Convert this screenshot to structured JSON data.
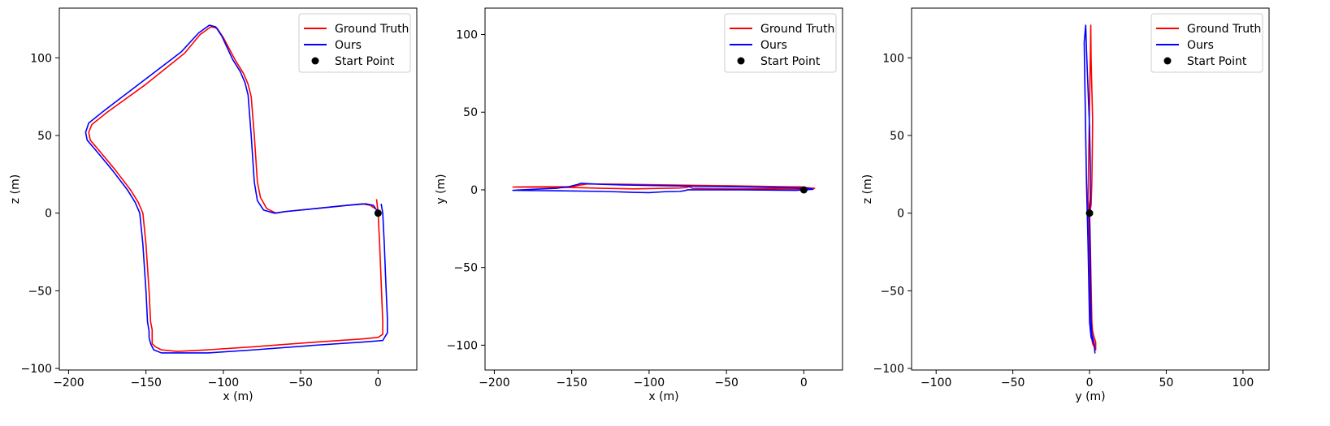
{
  "chart_data": [
    {
      "type": "line",
      "xlabel": "x (m)",
      "ylabel": "z (m)",
      "xlim": [
        -206,
        25
      ],
      "ylim": [
        -101,
        132
      ],
      "xticks": [
        -200,
        -150,
        -100,
        -50,
        0
      ],
      "yticks": [
        -100,
        -50,
        0,
        50,
        100
      ],
      "legend": {
        "position": "top-right",
        "entries": [
          "Ground Truth",
          "Ours",
          "Start Point"
        ]
      },
      "series": [
        {
          "name": "Ground Truth",
          "color": "#ff0000",
          "points": [
            [
              -1,
              9
            ],
            [
              0,
              0
            ],
            [
              1,
              -20
            ],
            [
              2,
              -45
            ],
            [
              3,
              -70
            ],
            [
              3,
              -78
            ],
            [
              0,
              -80
            ],
            [
              -10,
              -81
            ],
            [
              -40,
              -83
            ],
            [
              -80,
              -86
            ],
            [
              -110,
              -88
            ],
            [
              -130,
              -89
            ],
            [
              -140,
              -88
            ],
            [
              -144,
              -86
            ],
            [
              -146,
              -84
            ],
            [
              -146,
              -80
            ],
            [
              -146,
              -75
            ],
            [
              -147,
              -70
            ],
            [
              -148,
              -50
            ],
            [
              -150,
              -20
            ],
            [
              -152,
              0
            ],
            [
              -155,
              7
            ],
            [
              -160,
              15
            ],
            [
              -170,
              28
            ],
            [
              -180,
              40
            ],
            [
              -186,
              47
            ],
            [
              -187,
              52
            ],
            [
              -185,
              57
            ],
            [
              -175,
              65
            ],
            [
              -150,
              83
            ],
            [
              -125,
              103
            ],
            [
              -115,
              115
            ],
            [
              -108,
              120
            ],
            [
              -104,
              119
            ],
            [
              -100,
              113
            ],
            [
              -92,
              98
            ],
            [
              -87,
              90
            ],
            [
              -84,
              83
            ],
            [
              -82,
              75
            ],
            [
              -80,
              50
            ],
            [
              -78,
              20
            ],
            [
              -76,
              10
            ],
            [
              -72,
              3
            ],
            [
              -66,
              0
            ],
            [
              -60,
              1
            ],
            [
              -40,
              3
            ],
            [
              -20,
              5
            ],
            [
              -10,
              6
            ],
            [
              -5,
              5
            ],
            [
              -2,
              3
            ]
          ]
        },
        {
          "name": "Ours",
          "color": "#0000ff",
          "points": [
            [
              2,
              6
            ],
            [
              3,
              0
            ],
            [
              4,
              -20
            ],
            [
              5,
              -45
            ],
            [
              6,
              -68
            ],
            [
              6,
              -77
            ],
            [
              3,
              -82
            ],
            [
              -10,
              -83
            ],
            [
              -40,
              -85
            ],
            [
              -80,
              -88
            ],
            [
              -110,
              -90
            ],
            [
              -130,
              -90
            ],
            [
              -140,
              -90
            ],
            [
              -145,
              -88
            ],
            [
              -147,
              -84
            ],
            [
              -148,
              -80
            ],
            [
              -148,
              -76
            ],
            [
              -149,
              -70
            ],
            [
              -150,
              -50
            ],
            [
              -152,
              -20
            ],
            [
              -154,
              0
            ],
            [
              -157,
              7
            ],
            [
              -162,
              15
            ],
            [
              -172,
              28
            ],
            [
              -182,
              40
            ],
            [
              -188,
              47
            ],
            [
              -189,
              52
            ],
            [
              -187,
              58
            ],
            [
              -177,
              66
            ],
            [
              -152,
              85
            ],
            [
              -127,
              104
            ],
            [
              -116,
              116
            ],
            [
              -109,
              121
            ],
            [
              -105,
              120
            ],
            [
              -101,
              114
            ],
            [
              -94,
              99
            ],
            [
              -89,
              91
            ],
            [
              -86,
              84
            ],
            [
              -84,
              76
            ],
            [
              -82,
              50
            ],
            [
              -80,
              20
            ],
            [
              -78,
              8
            ],
            [
              -74,
              2
            ],
            [
              -67,
              0
            ],
            [
              -60,
              1
            ],
            [
              -40,
              3
            ],
            [
              -20,
              5
            ],
            [
              -8,
              6
            ],
            [
              -3,
              5
            ],
            [
              -1,
              2
            ]
          ]
        },
        {
          "name": "Start Point",
          "color": "#000000",
          "marker": "circle",
          "points": [
            [
              0,
              0
            ]
          ]
        }
      ]
    },
    {
      "type": "line",
      "xlabel": "x (m)",
      "ylabel": "y (m)",
      "xlim": [
        -206,
        25
      ],
      "ylim": [
        -116,
        117
      ],
      "xticks": [
        -200,
        -150,
        -100,
        -50,
        0
      ],
      "yticks": [
        -100,
        -50,
        0,
        50,
        100
      ],
      "legend": {
        "position": "top-right",
        "entries": [
          "Ground Truth",
          "Ours",
          "Start Point"
        ]
      },
      "series": [
        {
          "name": "Ground Truth",
          "color": "#ff0000",
          "points": [
            [
              -2,
              2
            ],
            [
              -10,
              2
            ],
            [
              -30,
              2.3
            ],
            [
              -50,
              2.6
            ],
            [
              -80,
              3
            ],
            [
              -110,
              3.5
            ],
            [
              -140,
              3.8
            ],
            [
              -145,
              3
            ],
            [
              -150,
              2
            ],
            [
              -170,
              2
            ],
            [
              -188,
              1.8
            ],
            [
              -170,
              1.7
            ],
            [
              -150,
              1.5
            ],
            [
              -130,
              1
            ],
            [
              -110,
              0.6
            ],
            [
              -90,
              1
            ],
            [
              -80,
              1.2
            ],
            [
              -76,
              1.5
            ],
            [
              -74,
              2
            ],
            [
              -72,
              1
            ],
            [
              -60,
              0.8
            ],
            [
              -40,
              0.6
            ],
            [
              -20,
              0.6
            ],
            [
              -5,
              0.5
            ],
            [
              0,
              0.3
            ],
            [
              4,
              0.5
            ],
            [
              7,
              1
            ],
            [
              0,
              1.5
            ],
            [
              -2,
              2
            ]
          ]
        },
        {
          "name": "Ours",
          "color": "#0000ff",
          "points": [
            [
              0,
              0
            ],
            [
              6,
              0.3
            ],
            [
              3,
              1
            ],
            [
              -10,
              1.3
            ],
            [
              -30,
              1.7
            ],
            [
              -60,
              2.2
            ],
            [
              -80,
              2.5
            ],
            [
              -110,
              3
            ],
            [
              -130,
              3.5
            ],
            [
              -144,
              4.2
            ],
            [
              -146,
              3.5
            ],
            [
              -152,
              2
            ],
            [
              -160,
              1
            ],
            [
              -188,
              -0.3
            ],
            [
              -160,
              -0.6
            ],
            [
              -130,
              -1
            ],
            [
              -110,
              -1.6
            ],
            [
              -100,
              -1.8
            ],
            [
              -90,
              -1.2
            ],
            [
              -80,
              -1
            ],
            [
              -77,
              -0.5
            ],
            [
              -75,
              0
            ],
            [
              -60,
              0
            ],
            [
              -40,
              0
            ],
            [
              -20,
              -0.2
            ],
            [
              -5,
              -0.3
            ],
            [
              0,
              0
            ]
          ]
        },
        {
          "name": "Start Point",
          "color": "#000000",
          "marker": "circle",
          "points": [
            [
              0,
              0
            ]
          ]
        }
      ]
    },
    {
      "type": "line",
      "xlabel": "y (m)",
      "ylabel": "z (m)",
      "xlim": [
        -116,
        117
      ],
      "ylim": [
        -101,
        132
      ],
      "xticks": [
        -100,
        -50,
        0,
        50,
        100
      ],
      "yticks": [
        -100,
        -50,
        0,
        50,
        100
      ],
      "legend": {
        "position": "top-right",
        "entries": [
          "Ground Truth",
          "Ours",
          "Start Point"
        ]
      },
      "series": [
        {
          "name": "Ground Truth",
          "color": "#ff0000",
          "points": [
            [
              -1,
              9
            ],
            [
              0,
              0
            ],
            [
              0.5,
              -20
            ],
            [
              1,
              -45
            ],
            [
              1.5,
              -70
            ],
            [
              2,
              -76
            ],
            [
              3,
              -80
            ],
            [
              4,
              -83
            ],
            [
              4,
              -88
            ],
            [
              2,
              -84
            ],
            [
              1,
              -78
            ],
            [
              0.5,
              -60
            ],
            [
              0,
              -30
            ],
            [
              -0.5,
              -10
            ],
            [
              -1,
              10
            ],
            [
              -0.5,
              40
            ],
            [
              0,
              70
            ],
            [
              0.5,
              100
            ],
            [
              0.8,
              121
            ],
            [
              1,
              100
            ],
            [
              1.5,
              80
            ],
            [
              2,
              60
            ],
            [
              1.8,
              40
            ],
            [
              1.5,
              20
            ],
            [
              1,
              5
            ],
            [
              0,
              0
            ]
          ]
        },
        {
          "name": "Ours",
          "color": "#0000ff",
          "points": [
            [
              0,
              0
            ],
            [
              0.3,
              -20
            ],
            [
              0.6,
              -45
            ],
            [
              1,
              -70
            ],
            [
              1.5,
              -78
            ],
            [
              3,
              -84
            ],
            [
              3.5,
              -90
            ],
            [
              3,
              -84
            ],
            [
              1,
              -80
            ],
            [
              0,
              -70
            ],
            [
              -0.5,
              -45
            ],
            [
              -1,
              -20
            ],
            [
              -1.5,
              0
            ],
            [
              -2,
              20
            ],
            [
              -2.5,
              50
            ],
            [
              -3,
              80
            ],
            [
              -3.5,
              110
            ],
            [
              -2.5,
              121
            ],
            [
              -2,
              105
            ],
            [
              -1,
              80
            ],
            [
              0,
              55
            ],
            [
              0.5,
              30
            ],
            [
              0.5,
              10
            ],
            [
              0,
              0
            ]
          ]
        },
        {
          "name": "Start Point",
          "color": "#000000",
          "marker": "circle",
          "points": [
            [
              0,
              0
            ]
          ]
        }
      ]
    }
  ]
}
